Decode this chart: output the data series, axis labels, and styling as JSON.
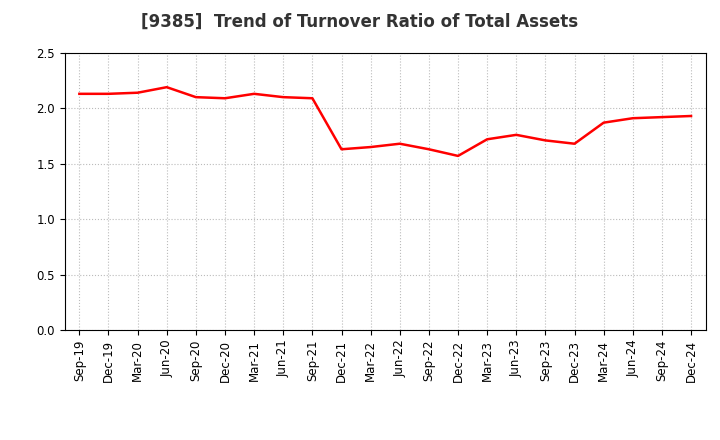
{
  "title": "[9385]  Trend of Turnover Ratio of Total Assets",
  "x_labels": [
    "Sep-19",
    "Dec-19",
    "Mar-20",
    "Jun-20",
    "Sep-20",
    "Dec-20",
    "Mar-21",
    "Jun-21",
    "Sep-21",
    "Dec-21",
    "Mar-22",
    "Jun-22",
    "Sep-22",
    "Dec-22",
    "Mar-23",
    "Jun-23",
    "Sep-23",
    "Dec-23",
    "Mar-24",
    "Jun-24",
    "Sep-24",
    "Dec-24"
  ],
  "y_values": [
    2.13,
    2.13,
    2.14,
    2.19,
    2.1,
    2.09,
    2.13,
    2.1,
    2.09,
    1.63,
    1.65,
    1.68,
    1.63,
    1.57,
    1.72,
    1.76,
    1.71,
    1.68,
    1.87,
    1.91,
    1.92,
    1.93
  ],
  "line_color": "#ff0000",
  "line_width": 1.8,
  "ylim": [
    0.0,
    2.5
  ],
  "yticks": [
    0.0,
    0.5,
    1.0,
    1.5,
    2.0,
    2.5
  ],
  "grid_color": "#bbbbbb",
  "grid_style": "dotted",
  "background_color": "#ffffff",
  "title_fontsize": 12,
  "tick_fontsize": 8.5,
  "title_color": "#333333"
}
